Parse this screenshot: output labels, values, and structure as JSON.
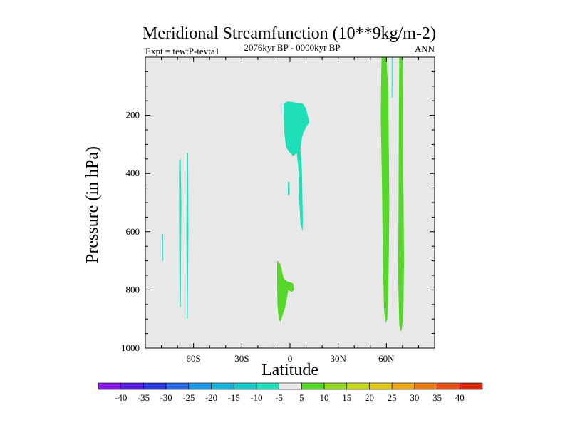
{
  "chart_data": {
    "type": "heatmap",
    "title": "Meridional Streamfunction (10**9kg/m-2)",
    "subtitle_left": "Expt = tewtP-tevta1",
    "subtitle_center": "2076kyr BP - 0000kyr BP",
    "subtitle_right": "ANN",
    "xlabel": "Latitude",
    "ylabel": "Pressure (in hPa)",
    "xlim": [
      -90,
      90
    ],
    "ylim": [
      1000,
      0
    ],
    "x_ticks": [
      {
        "value": -60,
        "label": "60S"
      },
      {
        "value": -30,
        "label": "30S"
      },
      {
        "value": 0,
        "label": "0"
      },
      {
        "value": 30,
        "label": "30N"
      },
      {
        "value": 60,
        "label": "60N"
      }
    ],
    "y_ticks": [
      {
        "value": 200,
        "label": "200"
      },
      {
        "value": 400,
        "label": "400"
      },
      {
        "value": 600,
        "label": "600"
      },
      {
        "value": 800,
        "label": "800"
      },
      {
        "value": 1000,
        "label": "1000"
      }
    ],
    "background_color": "#e8e8e8",
    "colorbar": {
      "levels": [
        "-40",
        "-35",
        "-30",
        "-25",
        "-20",
        "-15",
        "-10",
        "-5",
        "5",
        "10",
        "15",
        "20",
        "25",
        "30",
        "35",
        "40"
      ],
      "colors": [
        "#8a1ee8",
        "#5a22e0",
        "#2f3ee0",
        "#2f6ee8",
        "#1f98e8",
        "#18b4d8",
        "#17c8c8",
        "#1ee0b8",
        "#e8e8e8",
        "#55d828",
        "#94d81e",
        "#c4d81a",
        "#e0c818",
        "#e8a818",
        "#e87a18",
        "#e85018",
        "#e02a10"
      ]
    },
    "regions": [
      {
        "name": "south-lat-streak-a",
        "color": "#1ee0b8",
        "polygon": [
          [
            -79.5,
            608
          ],
          [
            -79.0,
            608
          ],
          [
            -79.0,
            700
          ],
          [
            -79.5,
            700
          ]
        ]
      },
      {
        "name": "south-lat-streak-b",
        "color": "#1ee0b8",
        "polygon": [
          [
            -69.0,
            355
          ],
          [
            -68.0,
            350
          ],
          [
            -67.6,
            500
          ],
          [
            -68.0,
            860
          ],
          [
            -68.6,
            860
          ],
          [
            -69.0,
            600
          ]
        ]
      },
      {
        "name": "south-lat-streak-c",
        "color": "#1ee0b8",
        "polygon": [
          [
            -64.2,
            330
          ],
          [
            -63.4,
            330
          ],
          [
            -63.2,
            600
          ],
          [
            -63.6,
            900
          ],
          [
            -64.2,
            900
          ],
          [
            -64.4,
            600
          ]
        ]
      },
      {
        "name": "equatorial-upper-negative",
        "color": "#1ee0b8",
        "polygon": [
          [
            -4.0,
            160
          ],
          [
            -1.5,
            152
          ],
          [
            3.0,
            156
          ],
          [
            8.0,
            160
          ],
          [
            10.0,
            178
          ],
          [
            11.5,
            210
          ],
          [
            12.0,
            225
          ],
          [
            10.0,
            240
          ],
          [
            8.0,
            265
          ],
          [
            7.0,
            290
          ],
          [
            6.5,
            320
          ],
          [
            7.0,
            350
          ],
          [
            7.5,
            400
          ],
          [
            7.7,
            480
          ],
          [
            8.0,
            560
          ],
          [
            7.8,
            600
          ],
          [
            6.5,
            570
          ],
          [
            5.8,
            500
          ],
          [
            5.5,
            430
          ],
          [
            5.2,
            380
          ],
          [
            4.2,
            330
          ],
          [
            2.0,
            340
          ],
          [
            -0.5,
            325
          ],
          [
            -2.5,
            310
          ],
          [
            -3.5,
            260
          ],
          [
            -3.8,
            210
          ]
        ]
      },
      {
        "name": "equatorial-negative-dot",
        "color": "#1ee0b8",
        "polygon": [
          [
            -1.3,
            430
          ],
          [
            -0.3,
            428
          ],
          [
            -0.2,
            470
          ],
          [
            -0.8,
            478
          ],
          [
            -1.3,
            470
          ]
        ]
      },
      {
        "name": "equatorial-lower-positive",
        "color": "#55d828",
        "polygon": [
          [
            -8.0,
            700
          ],
          [
            -6.0,
            710
          ],
          [
            -4.0,
            760
          ],
          [
            -2.0,
            770
          ],
          [
            2.0,
            778
          ],
          [
            2.5,
            800
          ],
          [
            1.0,
            808
          ],
          [
            -1.0,
            800
          ],
          [
            -3.0,
            860
          ],
          [
            -6.0,
            910
          ],
          [
            -7.0,
            900
          ],
          [
            -7.8,
            850
          ],
          [
            -8.0,
            780
          ]
        ]
      },
      {
        "name": "north-cell-broad",
        "color": "#55d828",
        "polygon": [
          [
            57.0,
            0
          ],
          [
            60.0,
            0
          ],
          [
            61.2,
            120
          ],
          [
            61.5,
            300
          ],
          [
            61.8,
            500
          ],
          [
            61.5,
            700
          ],
          [
            61.0,
            840
          ],
          [
            60.5,
            900
          ],
          [
            59.5,
            915
          ],
          [
            58.5,
            870
          ],
          [
            57.8,
            700
          ],
          [
            57.3,
            450
          ],
          [
            56.5,
            200
          ],
          [
            56.8,
            60
          ]
        ]
      },
      {
        "name": "north-cell-narrow",
        "color": "#55d828",
        "polygon": [
          [
            68.0,
            0
          ],
          [
            70.0,
            0
          ],
          [
            70.4,
            150
          ],
          [
            70.5,
            400
          ],
          [
            71.0,
            700
          ],
          [
            70.5,
            900
          ],
          [
            69.2,
            945
          ],
          [
            68.0,
            920
          ],
          [
            67.3,
            750
          ],
          [
            67.6,
            450
          ],
          [
            67.8,
            150
          ]
        ]
      },
      {
        "name": "north-thin-cyan-line",
        "color": "#1ee0b8",
        "polygon": [
          [
            63.3,
            0
          ],
          [
            63.7,
            0
          ],
          [
            63.7,
            140
          ],
          [
            63.3,
            140
          ]
        ]
      }
    ]
  }
}
